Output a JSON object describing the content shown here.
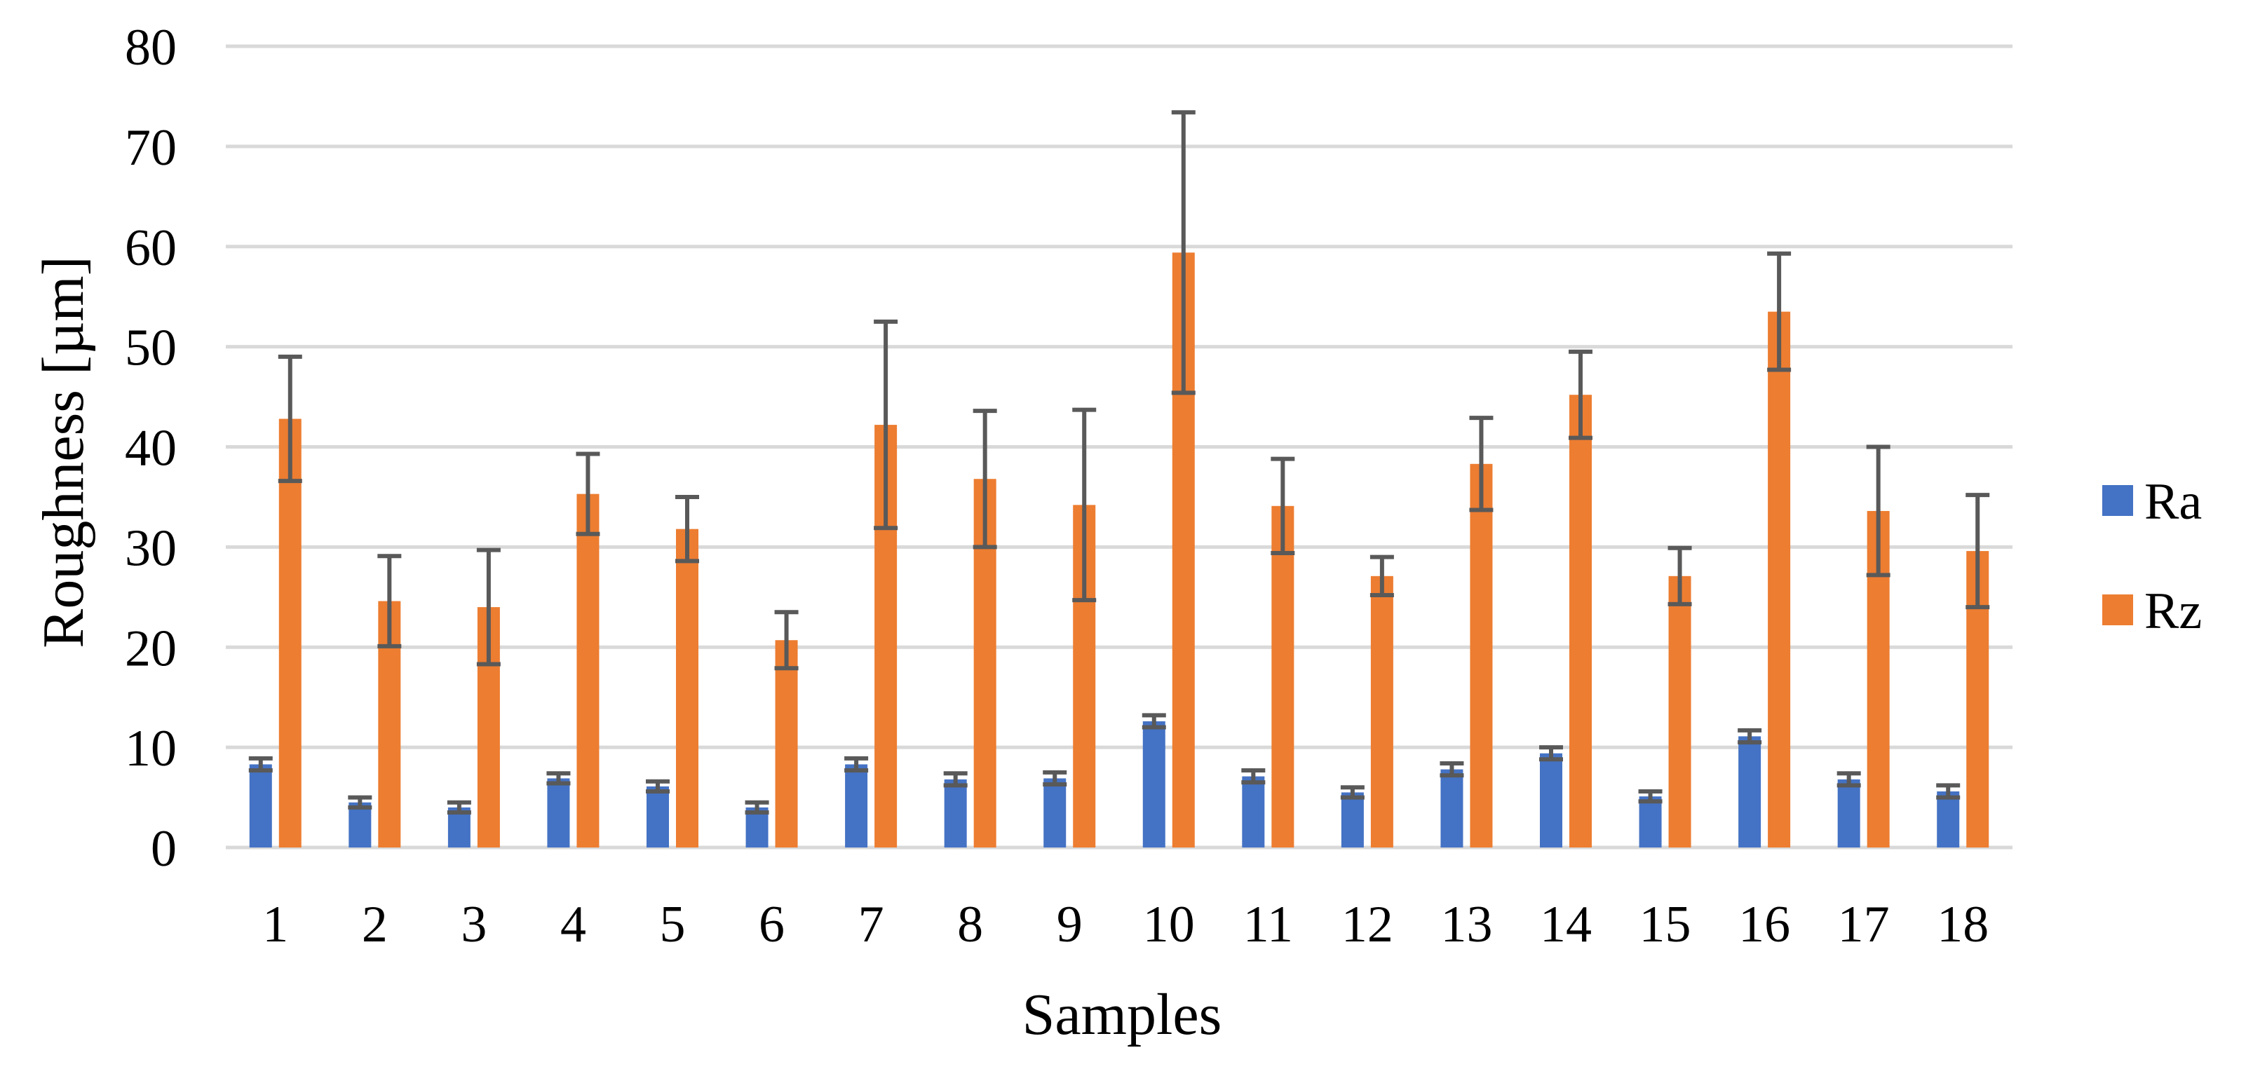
{
  "chart_data": {
    "type": "bar",
    "title": "",
    "xlabel": "Samples",
    "ylabel": "Roughness [µm]",
    "ylim": [
      0,
      80
    ],
    "yticks": [
      0,
      10,
      20,
      30,
      40,
      50,
      60,
      70,
      80
    ],
    "grid": true,
    "legend_position": "right",
    "categories": [
      "1",
      "2",
      "3",
      "4",
      "5",
      "6",
      "7",
      "8",
      "9",
      "10",
      "11",
      "12",
      "13",
      "14",
      "15",
      "16",
      "17",
      "18"
    ],
    "series": [
      {
        "name": "Ra",
        "color": "#4472c4",
        "values": [
          8.3,
          4.5,
          4.0,
          6.9,
          6.1,
          4.0,
          8.3,
          6.8,
          6.9,
          12.6,
          7.1,
          5.5,
          7.8,
          9.4,
          5.1,
          11.1,
          6.8,
          5.6
        ],
        "errors": [
          0.6,
          0.5,
          0.5,
          0.5,
          0.5,
          0.5,
          0.6,
          0.6,
          0.6,
          0.6,
          0.6,
          0.5,
          0.6,
          0.6,
          0.5,
          0.6,
          0.6,
          0.6
        ]
      },
      {
        "name": "Rz",
        "color": "#ed7d31",
        "values": [
          42.8,
          24.6,
          24.0,
          35.3,
          31.8,
          20.7,
          42.2,
          36.8,
          34.2,
          59.4,
          34.1,
          27.1,
          38.3,
          45.2,
          27.1,
          53.5,
          33.6,
          29.6
        ],
        "errors": [
          6.2,
          4.5,
          5.7,
          4.0,
          3.2,
          2.8,
          10.3,
          6.8,
          9.5,
          14.0,
          4.7,
          1.9,
          4.6,
          4.3,
          2.8,
          5.8,
          6.4,
          5.6
        ]
      }
    ]
  }
}
